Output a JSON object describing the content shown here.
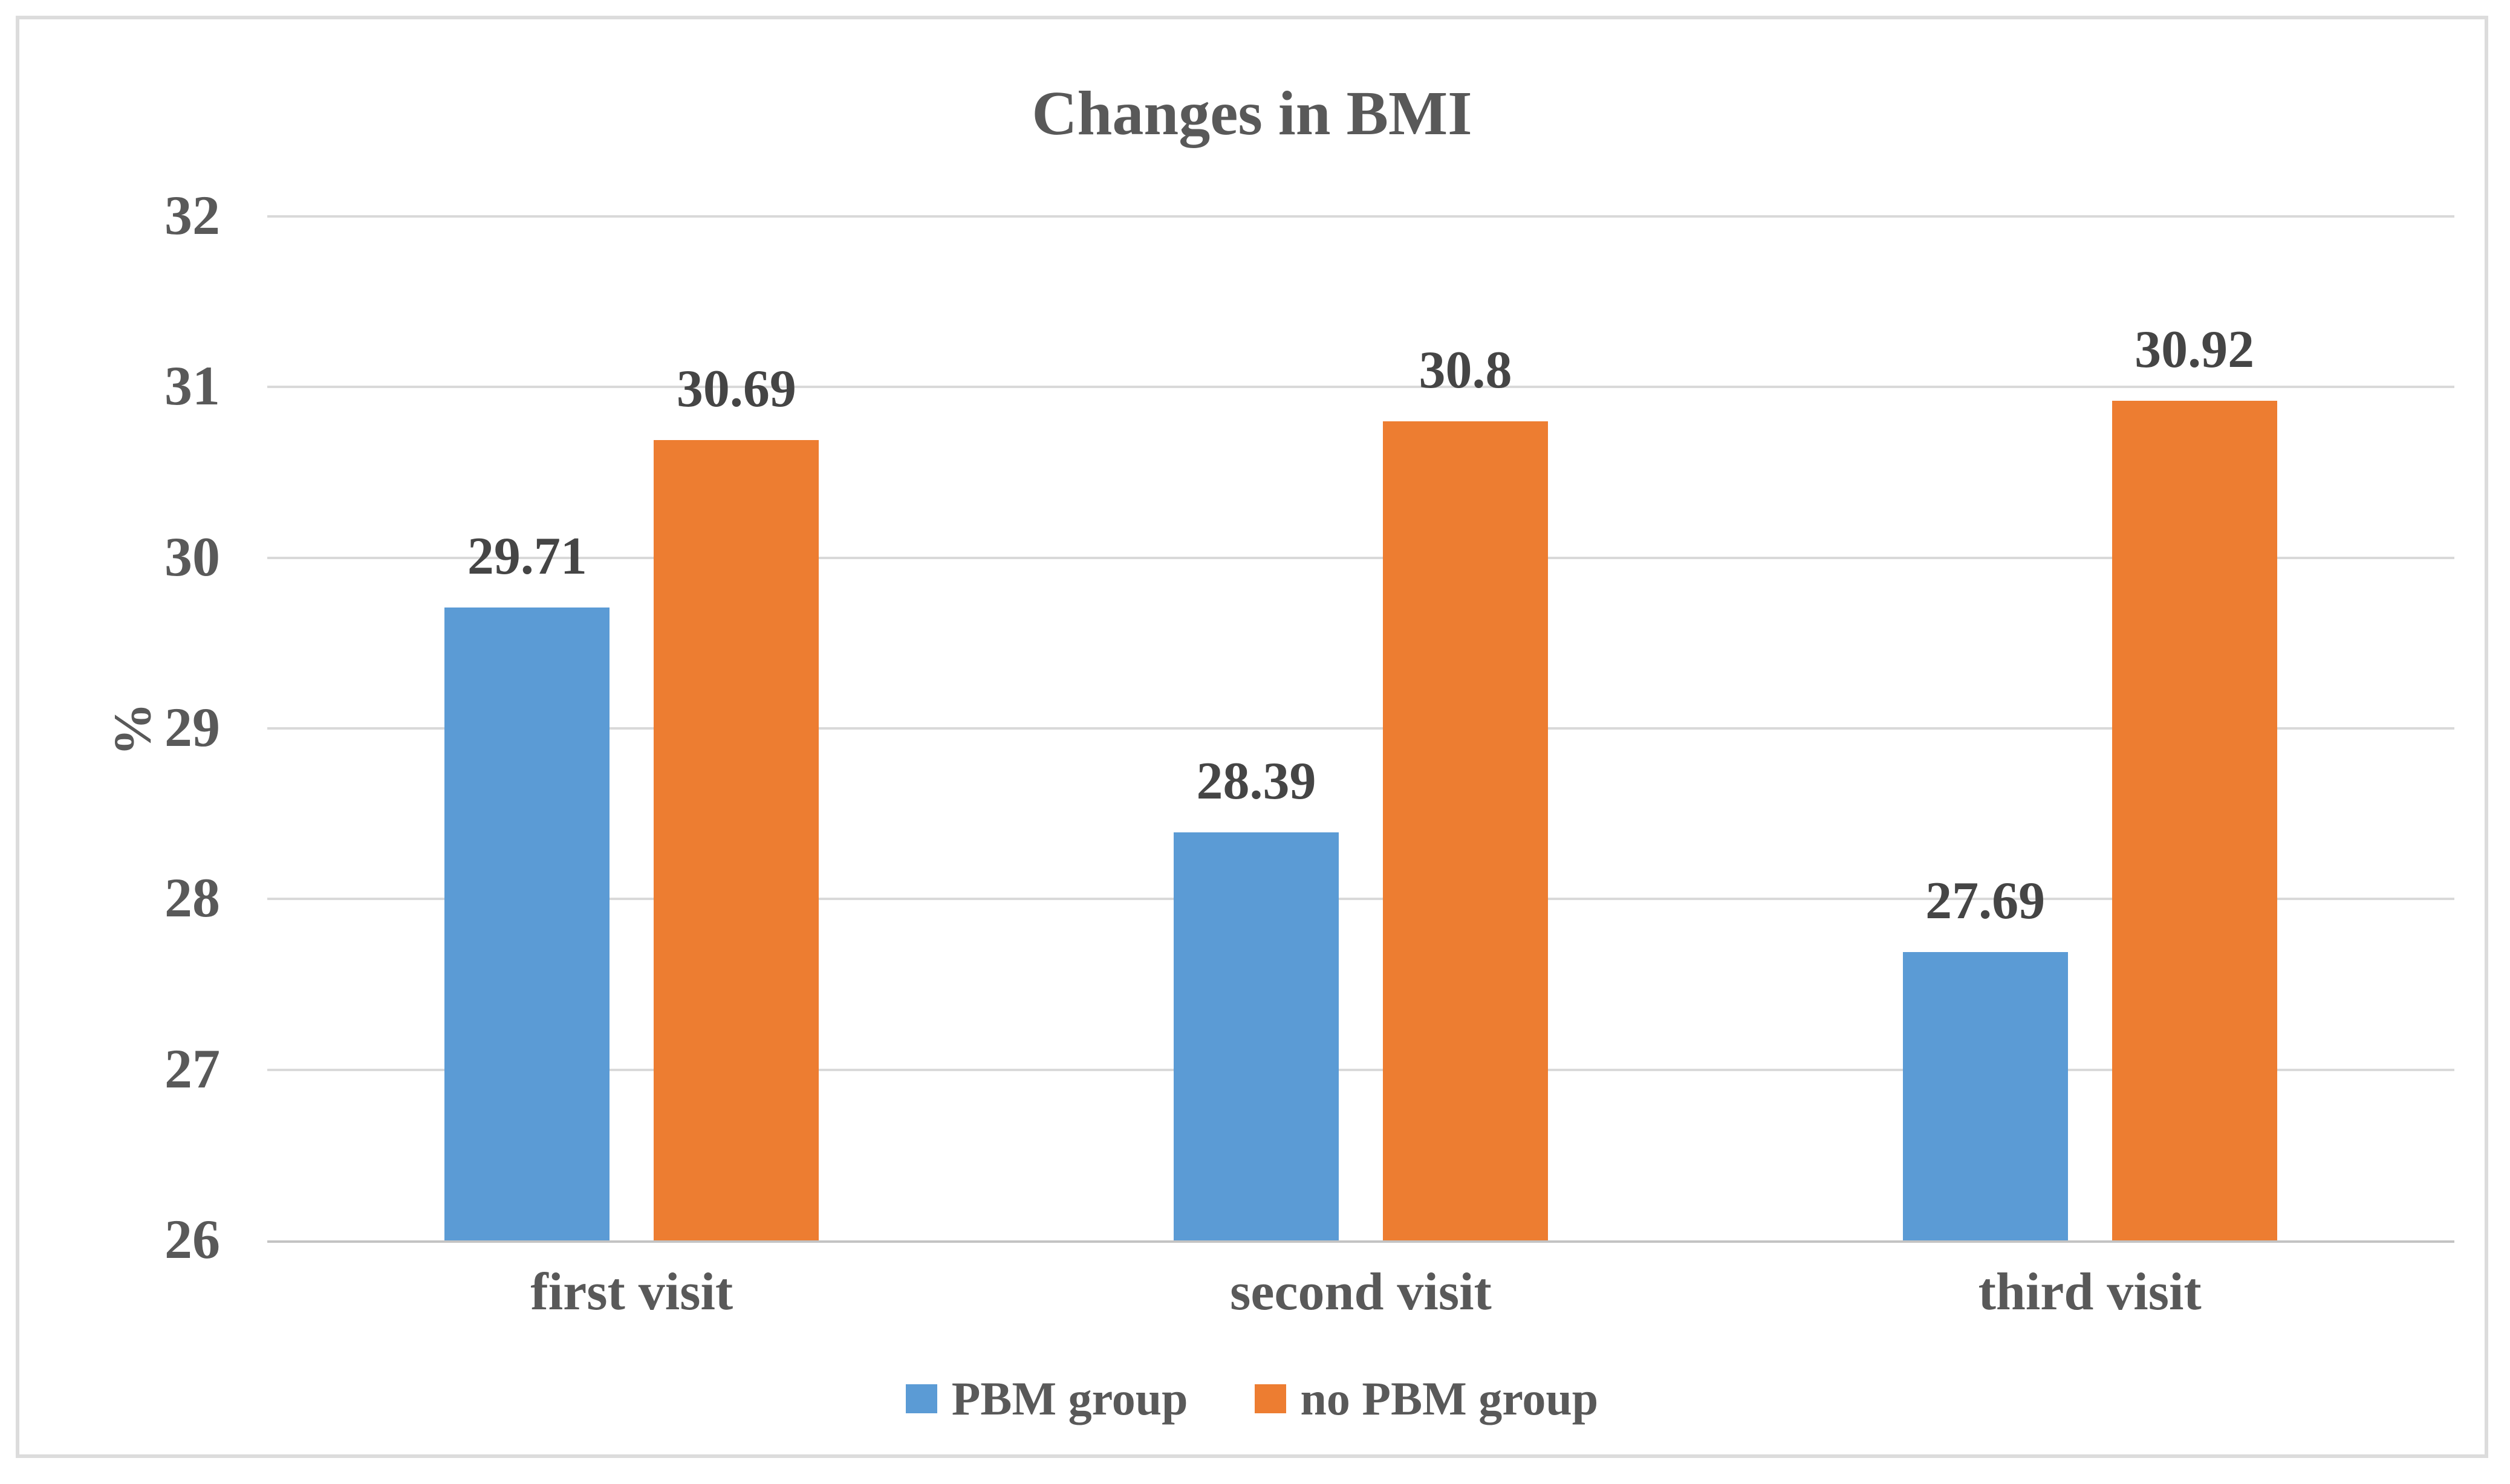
{
  "chart_data": {
    "type": "bar",
    "title": "Changes in BMI",
    "ylabel": "%",
    "xlabel": "",
    "categories": [
      "first visit",
      "second visit",
      "third visit"
    ],
    "series": [
      {
        "name": "PBM group",
        "color": "#5B9BD5",
        "values": [
          29.71,
          28.39,
          27.69
        ],
        "labels": [
          "29.71",
          "28.39",
          "27.69"
        ]
      },
      {
        "name": "no PBM group",
        "color": "#ED7D31",
        "values": [
          30.69,
          30.8,
          30.92
        ],
        "labels": [
          "30.69",
          "30.8",
          "30.92"
        ]
      }
    ],
    "ylim": [
      26,
      32
    ],
    "yticks": [
      26,
      27,
      28,
      29,
      30,
      31,
      32
    ],
    "grid": true,
    "legend_position": "bottom",
    "colors": {
      "gridline": "#d9d9d9",
      "axis_line": "#c3c3c3",
      "tick_text": "#595959",
      "value_label_text": "#454545",
      "title_text": "#595959",
      "frame_border": "#dcdcdc",
      "background": "#ffffff"
    }
  }
}
